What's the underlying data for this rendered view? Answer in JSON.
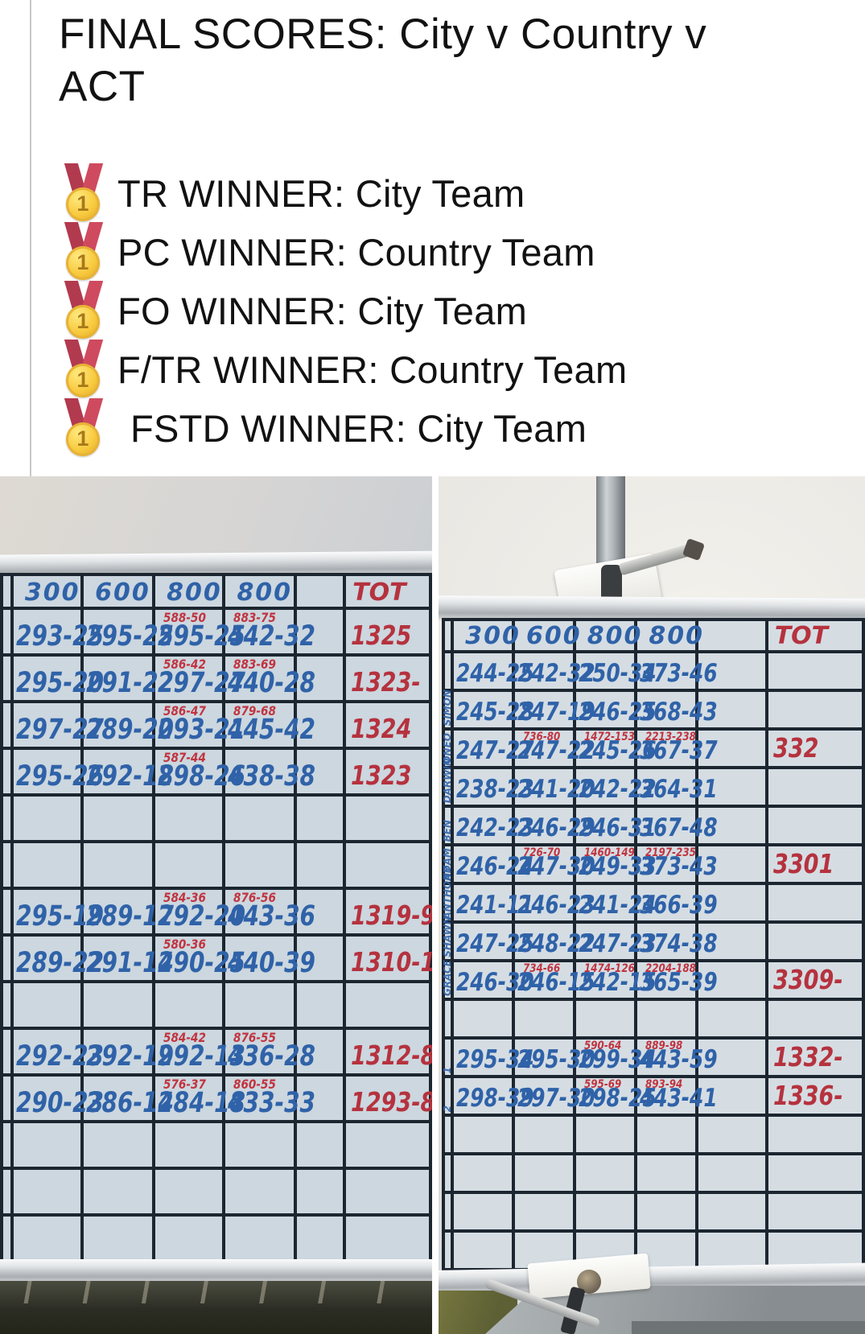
{
  "post": {
    "title": "FINAL SCORES: City v Country v ACT",
    "medal_digit": "1",
    "winners": [
      {
        "text": "TR WINNER: City Team"
      },
      {
        "text": "PC WINNER: Country Team"
      },
      {
        "text": "FO WINNER: City Team"
      },
      {
        "text": "F/TR WINNER: Country Team"
      },
      {
        "text": "FSTD WINNER: City Team"
      }
    ]
  },
  "colors": {
    "score_blue": "#2f62a8",
    "score_red": "#c13440",
    "grid_line": "#1c2630",
    "board_bg": "#ccd7df"
  },
  "left_board": {
    "headers": [
      "300",
      "600",
      "800",
      "800"
    ],
    "tot_header": "TOT",
    "rows": [
      {
        "cells": [
          {
            "m": "293-25"
          },
          {
            "m": "295-25"
          },
          {
            "m": "295-25",
            "s": "588-50"
          },
          {
            "m": "442-32",
            "s": "883-75"
          }
        ],
        "tot": "1325"
      },
      {
        "cells": [
          {
            "m": "295-20"
          },
          {
            "m": "291-22"
          },
          {
            "m": "297-27",
            "s": "586-42"
          },
          {
            "m": "440-28",
            "s": "883-69"
          }
        ],
        "tot": "1323-"
      },
      {
        "cells": [
          {
            "m": "297-27"
          },
          {
            "m": "289-20"
          },
          {
            "m": "293-21",
            "s": "586-47"
          },
          {
            "m": "445-42",
            "s": "879-68"
          }
        ],
        "tot": "1324"
      },
      {
        "cells": [
          {
            "m": "295-26"
          },
          {
            "m": "292-18"
          },
          {
            "m": "298-26",
            "s": "587-44"
          },
          {
            "m": "438-38"
          }
        ],
        "tot": "1323"
      },
      {
        "cells": [
          {},
          {},
          {},
          {}
        ],
        "tot": ""
      },
      {
        "cells": [
          {},
          {},
          {},
          {}
        ],
        "tot": ""
      },
      {
        "cells": [
          {
            "m": "295-19"
          },
          {
            "m": "289-17"
          },
          {
            "m": "292-20",
            "s": "584-36"
          },
          {
            "m": "443-36",
            "s": "876-56"
          }
        ],
        "tot": "1319-9"
      },
      {
        "cells": [
          {
            "m": "289-22"
          },
          {
            "m": "291-14"
          },
          {
            "m": "290-25",
            "s": "580-36"
          },
          {
            "m": "440-39"
          }
        ],
        "tot": "1310-1"
      },
      {
        "cells": [
          {},
          {},
          {},
          {}
        ],
        "tot": ""
      },
      {
        "cells": [
          {
            "m": "292-23"
          },
          {
            "m": "292-19"
          },
          {
            "m": "292-13",
            "s": "584-42"
          },
          {
            "m": "436-28",
            "s": "876-55"
          }
        ],
        "tot": "1312-8"
      },
      {
        "cells": [
          {
            "m": "290-23"
          },
          {
            "m": "286-14"
          },
          {
            "m": "284-18",
            "s": "576-37"
          },
          {
            "m": "433-33",
            "s": "860-55"
          }
        ],
        "tot": "1293-8"
      },
      {
        "cells": [
          {},
          {},
          {},
          {}
        ],
        "tot": ""
      },
      {
        "cells": [
          {},
          {},
          {},
          {}
        ],
        "tot": ""
      },
      {
        "cells": [
          {},
          {},
          {},
          {}
        ],
        "tot": ""
      }
    ]
  },
  "right_board": {
    "headers": [
      "300",
      "600",
      "800",
      "800"
    ],
    "tot_header": "TOT",
    "rows": [
      {
        "name": "",
        "cells": [
          {
            "m": "244-25"
          },
          {
            "m": "242-32"
          },
          {
            "m": "250-34"
          },
          {
            "m": "373-46"
          }
        ],
        "tot": ""
      },
      {
        "name": "SIMON",
        "cells": [
          {
            "m": "245-28"
          },
          {
            "m": "247-19"
          },
          {
            "m": "246-25"
          },
          {
            "m": "368-43"
          }
        ],
        "tot": ""
      },
      {
        "name": "ONEO",
        "cells": [
          {
            "m": "247-27"
          },
          {
            "m": "247-22",
            "s": "736-80"
          },
          {
            "m": "245-26",
            "s": "1472-153"
          },
          {
            "m": "367-37",
            "s": "2213-238"
          }
        ],
        "tot": "332"
      },
      {
        "name": "DARWIN",
        "cells": [
          {
            "m": "238-23"
          },
          {
            "m": "241-20"
          },
          {
            "m": "242-22"
          },
          {
            "m": "364-31"
          }
        ],
        "tot": ""
      },
      {
        "name": "BEN",
        "cells": [
          {
            "m": "242-23"
          },
          {
            "m": "246-29"
          },
          {
            "m": "246-31"
          },
          {
            "m": "367-48"
          }
        ],
        "tot": ""
      },
      {
        "name": "ADAM",
        "cells": [
          {
            "m": "246-24"
          },
          {
            "m": "247-30",
            "s": "726-70"
          },
          {
            "m": "249-33",
            "s": "1460-149"
          },
          {
            "m": "373-43",
            "s": "2197-235"
          }
        ],
        "tot": "3301"
      },
      {
        "name": "ANTHONY",
        "cells": [
          {
            "m": "241-11"
          },
          {
            "m": "246-23"
          },
          {
            "m": "241-24"
          },
          {
            "m": "366-39"
          }
        ],
        "tot": ""
      },
      {
        "name": "SHAWN",
        "cells": [
          {
            "m": "247-25"
          },
          {
            "m": "248-22"
          },
          {
            "m": "247-23"
          },
          {
            "m": "374-38"
          }
        ],
        "tot": ""
      },
      {
        "name": "GRACE",
        "cells": [
          {
            "m": "246-30"
          },
          {
            "m": "246-15",
            "s": "734-66"
          },
          {
            "m": "242-15",
            "s": "1474-126"
          },
          {
            "m": "365-39",
            "s": "2204-188"
          }
        ],
        "tot": "3309-"
      },
      {
        "name": "",
        "cells": [
          {},
          {},
          {},
          {}
        ],
        "tot": ""
      },
      {
        "name": "1",
        "cells": [
          {
            "m": "295-34"
          },
          {
            "m": "295-30"
          },
          {
            "m": "299-34",
            "s": "590-64"
          },
          {
            "m": "443-59",
            "s": "889-98"
          }
        ],
        "tot": "1332-"
      },
      {
        "name": "2",
        "cells": [
          {
            "m": "298-39"
          },
          {
            "m": "297-30"
          },
          {
            "m": "298-25",
            "s": "595-69"
          },
          {
            "m": "443-41",
            "s": "893-94"
          }
        ],
        "tot": "1336-"
      },
      {
        "name": "",
        "cells": [
          {},
          {},
          {},
          {}
        ],
        "tot": ""
      },
      {
        "name": "",
        "cells": [
          {},
          {},
          {},
          {}
        ],
        "tot": ""
      },
      {
        "name": "",
        "cells": [
          {},
          {},
          {},
          {}
        ],
        "tot": ""
      },
      {
        "name": "",
        "cells": [
          {},
          {},
          {},
          {}
        ],
        "tot": ""
      }
    ]
  }
}
